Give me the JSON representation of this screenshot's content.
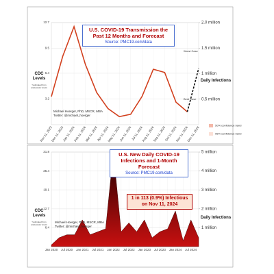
{
  "chart_data": [
    {
      "type": "line",
      "title": "U.S. COVID-19 Transmission the Past 12 Months and Forecast",
      "subtitle": "Source: PMC19.com/data",
      "y_label": "CDC Levels",
      "y_note": "*estimated from wastewater levels",
      "y2_label": "Daily Infections",
      "credits": [
        "Michael Hoerger, PhD, MSCR, MBA",
        "Twitter: @michael_hoerger"
      ],
      "categories": [
        "Nov 11, 2023",
        "Dec 11, 2023",
        "Jan 11, 2024",
        "Feb 11, 2024",
        "Mar 11, 2024",
        "Apr 11, 2024",
        "May 11, 2024",
        "Jun 11, 2024",
        "Jul 11, 2024",
        "Aug 11, 2024",
        "Sep 11, 2024",
        "Oct 11, 2024",
        "Nov 11, 2024",
        "Dec 11, 2024"
      ],
      "series": [
        {
          "color": "#d2401e",
          "dashed": false,
          "values": [
            3.5,
            8.5,
            12.2,
            7.5,
            4.0,
            2.0,
            1.0,
            1.3,
            3.5,
            6.9,
            6.5,
            2.8,
            1.6,
            null
          ]
        },
        {
          "color": "#111111",
          "dashed": true,
          "values": [
            null,
            null,
            null,
            null,
            null,
            null,
            null,
            null,
            null,
            null,
            null,
            null,
            1.6,
            7.0
          ]
        }
      ],
      "annotations": [
        {
          "text": "Worst Case",
          "color": "#c0392b"
        },
        {
          "text": "Best Case",
          "color": "#e8a040"
        }
      ],
      "legend": [
        {
          "text": "50% confidence band",
          "color": "#f4b8a8"
        },
        {
          "text": "95% confidence band",
          "color": "#fbe0d6"
        }
      ],
      "ylim": [
        0,
        12.7
      ],
      "yticks": [
        3.2,
        6.4,
        9.5,
        12.7
      ],
      "y2lim": [
        0,
        2000000
      ],
      "y2ticks": [
        {
          "value": 500000,
          "label": "0.5 million"
        },
        {
          "value": 1000000,
          "label": "1 million"
        },
        {
          "value": 1500000,
          "label": "1.5 million"
        },
        {
          "value": 2000000,
          "label": "2.0 million"
        }
      ],
      "grid": true
    },
    {
      "type": "area",
      "title": "U.S. New Daily COVID-19 Infections and 1-Month Forecast",
      "subtitle": "Source: PMC19.com/data",
      "y_label": "CDC Levels",
      "y_note": "*estimated from wastewater levels",
      "y2_label": "Daily Infections",
      "credits": [
        "Michael Hoerger, PhD, MSCR, MBA",
        "Twitter: @michael_hoerger"
      ],
      "callout": "1 in 113 (0.9%) Infectious on Nov 11, 2024",
      "categories": [
        "Jan 2020",
        null,
        "Jul 2020",
        null,
        "Jan 2021",
        null,
        "Jul 2021",
        null,
        "Jan 2022",
        null,
        "Jul 2022",
        null,
        "Jan 2023",
        null,
        "Jul 2023",
        null,
        "Jan 2024",
        null,
        "Jul 2024",
        null
      ],
      "series": [
        {
          "color": "#c81010",
          "values": [
            0.6,
            3,
            4,
            4,
            9,
            4,
            5,
            6,
            31.8,
            5,
            8,
            5,
            9,
            3,
            5,
            6,
            12,
            2,
            9,
            3
          ]
        }
      ],
      "ylim": [
        0,
        31.8
      ],
      "yticks": [
        6.4,
        12.7,
        19.1,
        25.4,
        31.8
      ],
      "y2lim": [
        0,
        5000000
      ],
      "y2ticks": [
        {
          "value": 1000000,
          "label": "1 million"
        },
        {
          "value": 2000000,
          "label": "2 million"
        },
        {
          "value": 3000000,
          "label": "3 million"
        },
        {
          "value": 4000000,
          "label": "4 million"
        },
        {
          "value": 5000000,
          "label": "5 million"
        }
      ],
      "grid": true
    }
  ]
}
